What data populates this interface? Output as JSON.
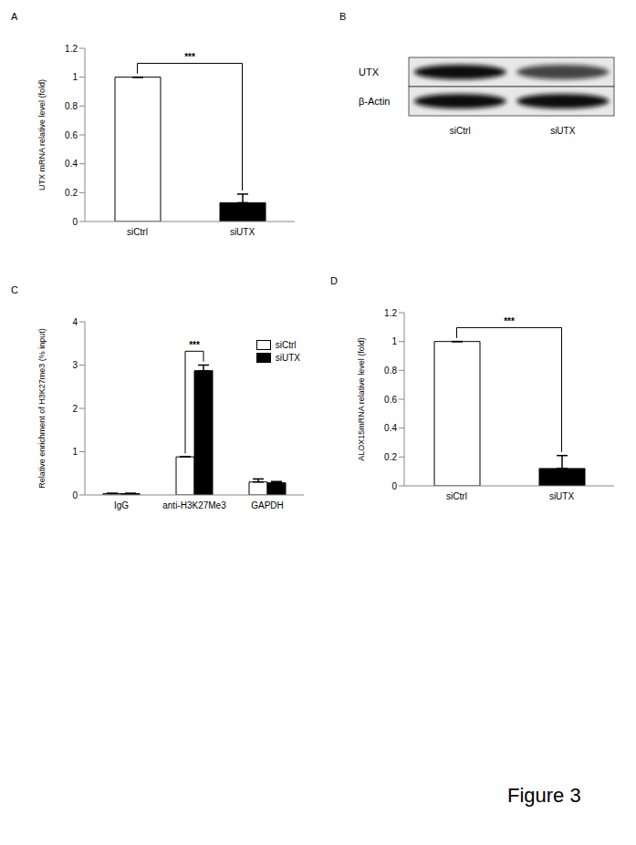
{
  "figure_label": "Figure 3",
  "chart_data": [
    {
      "panel": "A",
      "type": "bar",
      "ylabel": "UTX mRNA relative level (fold)",
      "categories": [
        "siCtrl",
        "siUTX"
      ],
      "values": [
        1,
        0.13
      ],
      "errors": [
        0,
        0.06
      ],
      "colors": [
        "#ffffff",
        "#000000"
      ],
      "ylim": [
        0,
        1.2
      ],
      "yticks": [
        0,
        0.2,
        0.4,
        0.6,
        0.8,
        1,
        1.2
      ],
      "annotations": [
        {
          "text": "***",
          "between": [
            "siCtrl",
            "siUTX"
          ]
        }
      ]
    },
    {
      "panel": "B",
      "type": "western_blot",
      "rows": [
        "UTX",
        "β-Actin"
      ],
      "lanes": [
        "siCtrl",
        "siUTX"
      ]
    },
    {
      "panel": "C",
      "type": "bar",
      "ylabel": "Relative enrichment of H3K27me3 (% input)",
      "categories": [
        "IgG",
        "anti-H3K27Me3",
        "GAPDH"
      ],
      "series": [
        {
          "name": "siCtrl",
          "color": "#ffffff",
          "values": [
            0.03,
            0.88,
            0.3
          ],
          "errors": [
            0.01,
            0,
            0.07
          ]
        },
        {
          "name": "siUTX",
          "color": "#000000",
          "values": [
            0.03,
            2.87,
            0.28
          ],
          "errors": [
            0.01,
            0.13,
            0.03
          ]
        }
      ],
      "ylim": [
        0,
        4
      ],
      "yticks": [
        0,
        1,
        2,
        3,
        4
      ],
      "legend": "top-right",
      "annotations": [
        {
          "text": "***",
          "category": "anti-H3K27Me3",
          "between": [
            "siCtrl",
            "siUTX"
          ]
        }
      ]
    },
    {
      "panel": "D",
      "type": "bar",
      "ylabel": "ALOX15mRNA relative level (fold)",
      "categories": [
        "siCtrl",
        "siUTX"
      ],
      "values": [
        1,
        0.12
      ],
      "errors": [
        0,
        0.09
      ],
      "colors": [
        "#ffffff",
        "#000000"
      ],
      "ylim": [
        0,
        1.2
      ],
      "yticks": [
        0,
        0.2,
        0.4,
        0.6,
        0.8,
        1,
        1.2
      ],
      "annotations": [
        {
          "text": "***",
          "between": [
            "siCtrl",
            "siUTX"
          ]
        }
      ]
    }
  ]
}
